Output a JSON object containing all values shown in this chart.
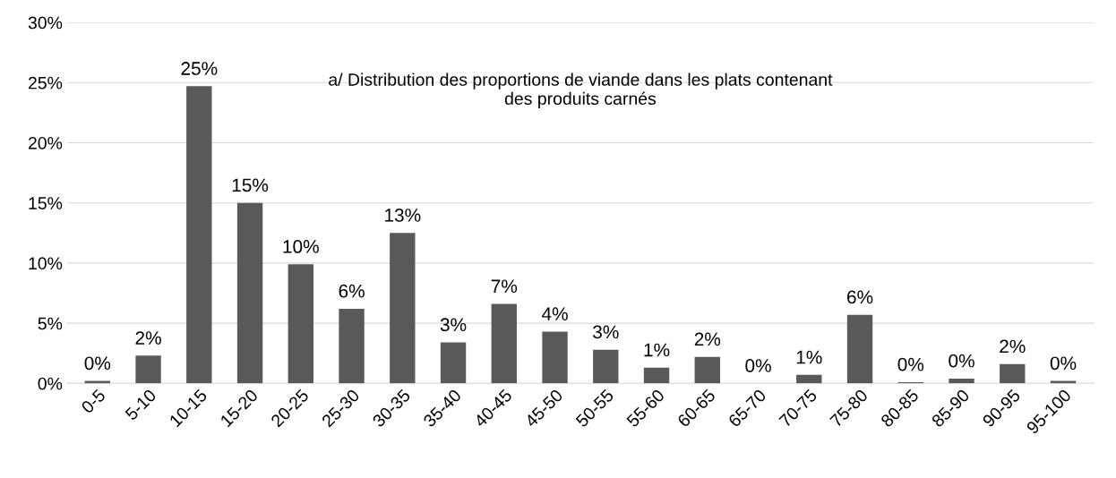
{
  "chart_data": {
    "type": "bar",
    "title": "a/ Distribution des proportions de viande dans les plats contenant\ndes produits carnés",
    "categories": [
      "0-5",
      "5-10",
      "10-15",
      "15-20",
      "20-25",
      "25-30",
      "30-35",
      "35-40",
      "40-45",
      "45-50",
      "50-55",
      "55-60",
      "60-65",
      "65-70",
      "70-75",
      "75-80",
      "80-85",
      "85-90",
      "90-95",
      "95-100"
    ],
    "values": [
      0.2,
      2.3,
      24.7,
      15.0,
      9.9,
      6.2,
      12.5,
      3.4,
      6.6,
      4.3,
      2.8,
      1.3,
      2.2,
      0.0,
      0.7,
      5.7,
      0.1,
      0.4,
      1.6,
      0.2
    ],
    "value_labels": [
      "0%",
      "2%",
      "25%",
      "15%",
      "10%",
      "6%",
      "13%",
      "3%",
      "7%",
      "4%",
      "3%",
      "1%",
      "2%",
      "0%",
      "1%",
      "6%",
      "0%",
      "0%",
      "2%",
      "0%"
    ],
    "color": "#595959",
    "ylim": [
      0,
      30
    ],
    "yticks": [
      {
        "value": 0,
        "label": "0%"
      },
      {
        "value": 5,
        "label": "5%"
      },
      {
        "value": 10,
        "label": "10%"
      },
      {
        "value": 15,
        "label": "15%"
      },
      {
        "value": 20,
        "label": "20%"
      },
      {
        "value": 25,
        "label": "25%"
      },
      {
        "value": 30,
        "label": "30%"
      }
    ],
    "grid": "y",
    "legend": false
  }
}
